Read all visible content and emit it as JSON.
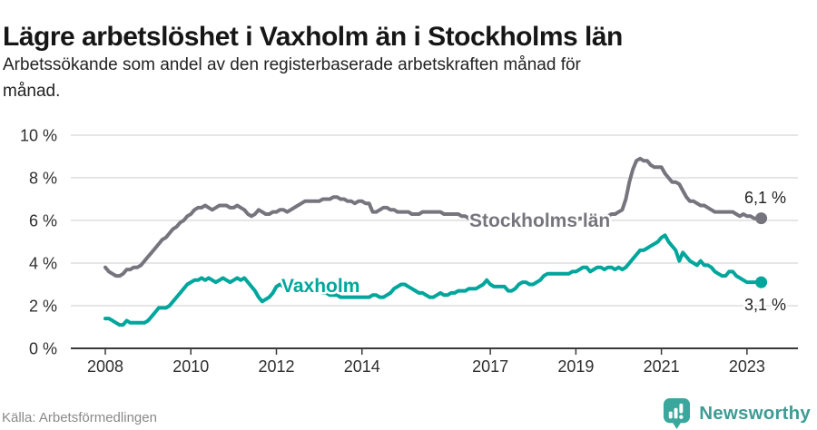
{
  "header": {
    "title": "Lägre arbetslöshet i Vaxholm än i Stockholms län",
    "subtitle_line1": "Arbetssökande som andel av den registerbaserade arbetskraften månad för",
    "subtitle_line2": "månad."
  },
  "chart_data": {
    "type": "line",
    "title": "Lägre arbetslöshet i Vaxholm än i Stockholms län",
    "subtitle": "Arbetssökande som andel av den registerbaserade arbetskraften månad för månad.",
    "unit": "%",
    "grid": "horizontal",
    "x": {
      "start_year": 2008,
      "start_month": 1,
      "step_months": 1,
      "points": 185,
      "end": "2023-05"
    },
    "x_tick_years": [
      2008,
      2010,
      2012,
      2014,
      2017,
      2019,
      2021,
      2023
    ],
    "x_tick_labels": [
      "2008",
      "2010",
      "2012",
      "2014",
      "2017",
      "2019",
      "2021",
      "2023"
    ],
    "ylim": [
      0,
      10
    ],
    "y_tick_values": [
      0,
      2,
      4,
      6,
      8,
      10
    ],
    "y_tick_labels": [
      "0 %",
      "2 %",
      "4 %",
      "6 %",
      "8 %",
      "10 %"
    ],
    "series": [
      {
        "name": "Stockholms län",
        "color": "#76757e",
        "end_label": "6,1 %",
        "last_value": 6.1,
        "values": [
          3.8,
          3.6,
          3.5,
          3.4,
          3.4,
          3.5,
          3.7,
          3.7,
          3.8,
          3.8,
          3.9,
          4.1,
          4.3,
          4.5,
          4.7,
          4.9,
          5.1,
          5.2,
          5.4,
          5.6,
          5.7,
          5.9,
          6.0,
          6.2,
          6.3,
          6.5,
          6.6,
          6.6,
          6.7,
          6.6,
          6.5,
          6.6,
          6.7,
          6.7,
          6.7,
          6.6,
          6.6,
          6.7,
          6.6,
          6.5,
          6.3,
          6.2,
          6.3,
          6.5,
          6.4,
          6.3,
          6.3,
          6.4,
          6.4,
          6.5,
          6.5,
          6.4,
          6.5,
          6.6,
          6.7,
          6.8,
          6.9,
          6.9,
          6.9,
          6.9,
          6.9,
          7.0,
          7.0,
          7.0,
          7.1,
          7.1,
          7.0,
          7.0,
          6.9,
          6.9,
          6.8,
          6.9,
          6.9,
          6.8,
          6.8,
          6.4,
          6.4,
          6.5,
          6.6,
          6.6,
          6.5,
          6.5,
          6.4,
          6.4,
          6.4,
          6.4,
          6.3,
          6.3,
          6.3,
          6.4,
          6.4,
          6.4,
          6.4,
          6.4,
          6.4,
          6.3,
          6.3,
          6.3,
          6.3,
          6.3,
          6.2,
          6.2,
          6.1,
          6.0,
          6.1,
          6.1,
          6.1,
          6.1,
          6.1,
          6.0,
          6.0,
          6.0,
          6.0,
          6.0,
          6.0,
          5.9,
          5.9,
          5.9,
          5.9,
          5.9,
          5.9,
          5.9,
          5.9,
          5.9,
          5.9,
          5.9,
          6.0,
          6.0,
          6.0,
          6.0,
          6.0,
          6.0,
          6.0,
          6.1,
          6.1,
          6.1,
          6.1,
          6.1,
          6.2,
          6.2,
          6.2,
          6.2,
          6.3,
          6.3,
          6.4,
          6.5,
          7.0,
          7.8,
          8.4,
          8.8,
          8.9,
          8.8,
          8.8,
          8.6,
          8.5,
          8.5,
          8.5,
          8.2,
          8.0,
          7.8,
          7.8,
          7.7,
          7.4,
          7.1,
          6.9,
          6.9,
          6.8,
          6.7,
          6.7,
          6.6,
          6.5,
          6.4,
          6.4,
          6.4,
          6.4,
          6.4,
          6.4,
          6.3,
          6.2,
          6.3,
          6.2,
          6.2,
          6.1,
          6.1,
          6.1
        ]
      },
      {
        "name": "Vaxholm",
        "color": "#00a69c",
        "end_label": "3,1 %",
        "last_value": 3.1,
        "values": [
          1.4,
          1.4,
          1.3,
          1.2,
          1.1,
          1.1,
          1.3,
          1.2,
          1.2,
          1.2,
          1.2,
          1.2,
          1.3,
          1.5,
          1.7,
          1.9,
          1.9,
          1.9,
          2.0,
          2.2,
          2.4,
          2.6,
          2.8,
          3.0,
          3.1,
          3.2,
          3.2,
          3.3,
          3.2,
          3.3,
          3.2,
          3.1,
          3.2,
          3.3,
          3.2,
          3.1,
          3.2,
          3.3,
          3.2,
          3.3,
          3.1,
          2.9,
          2.7,
          2.4,
          2.2,
          2.3,
          2.4,
          2.6,
          2.9,
          3.0,
          2.9,
          3.0,
          3.1,
          3.0,
          2.9,
          2.9,
          2.8,
          2.8,
          2.7,
          2.7,
          2.7,
          2.6,
          2.6,
          2.5,
          2.5,
          2.5,
          2.4,
          2.4,
          2.4,
          2.4,
          2.4,
          2.4,
          2.4,
          2.4,
          2.4,
          2.5,
          2.5,
          2.4,
          2.4,
          2.5,
          2.6,
          2.8,
          2.9,
          3.0,
          3.0,
          2.9,
          2.8,
          2.7,
          2.6,
          2.6,
          2.5,
          2.4,
          2.4,
          2.5,
          2.6,
          2.5,
          2.5,
          2.6,
          2.6,
          2.7,
          2.7,
          2.7,
          2.8,
          2.8,
          2.8,
          2.9,
          3.0,
          3.2,
          3.0,
          2.9,
          2.9,
          2.9,
          2.9,
          2.7,
          2.7,
          2.8,
          3.0,
          3.1,
          3.1,
          3.0,
          3.0,
          3.1,
          3.2,
          3.4,
          3.5,
          3.5,
          3.5,
          3.5,
          3.5,
          3.5,
          3.5,
          3.6,
          3.6,
          3.7,
          3.8,
          3.8,
          3.6,
          3.7,
          3.8,
          3.8,
          3.7,
          3.8,
          3.8,
          3.7,
          3.8,
          3.7,
          3.8,
          4.0,
          4.2,
          4.4,
          4.6,
          4.6,
          4.7,
          4.8,
          4.9,
          5.0,
          5.2,
          5.3,
          5.0,
          4.8,
          4.6,
          4.1,
          4.5,
          4.3,
          4.1,
          4.0,
          3.9,
          4.1,
          3.9,
          3.9,
          3.8,
          3.6,
          3.5,
          3.4,
          3.4,
          3.6,
          3.6,
          3.4,
          3.3,
          3.2,
          3.1,
          3.1,
          3.1,
          3.1,
          3.1
        ]
      }
    ]
  },
  "footer": {
    "source": "Källa: Arbetsförmedlingen",
    "brand": "Newsworthy",
    "brand_color": "#3aa79d"
  }
}
